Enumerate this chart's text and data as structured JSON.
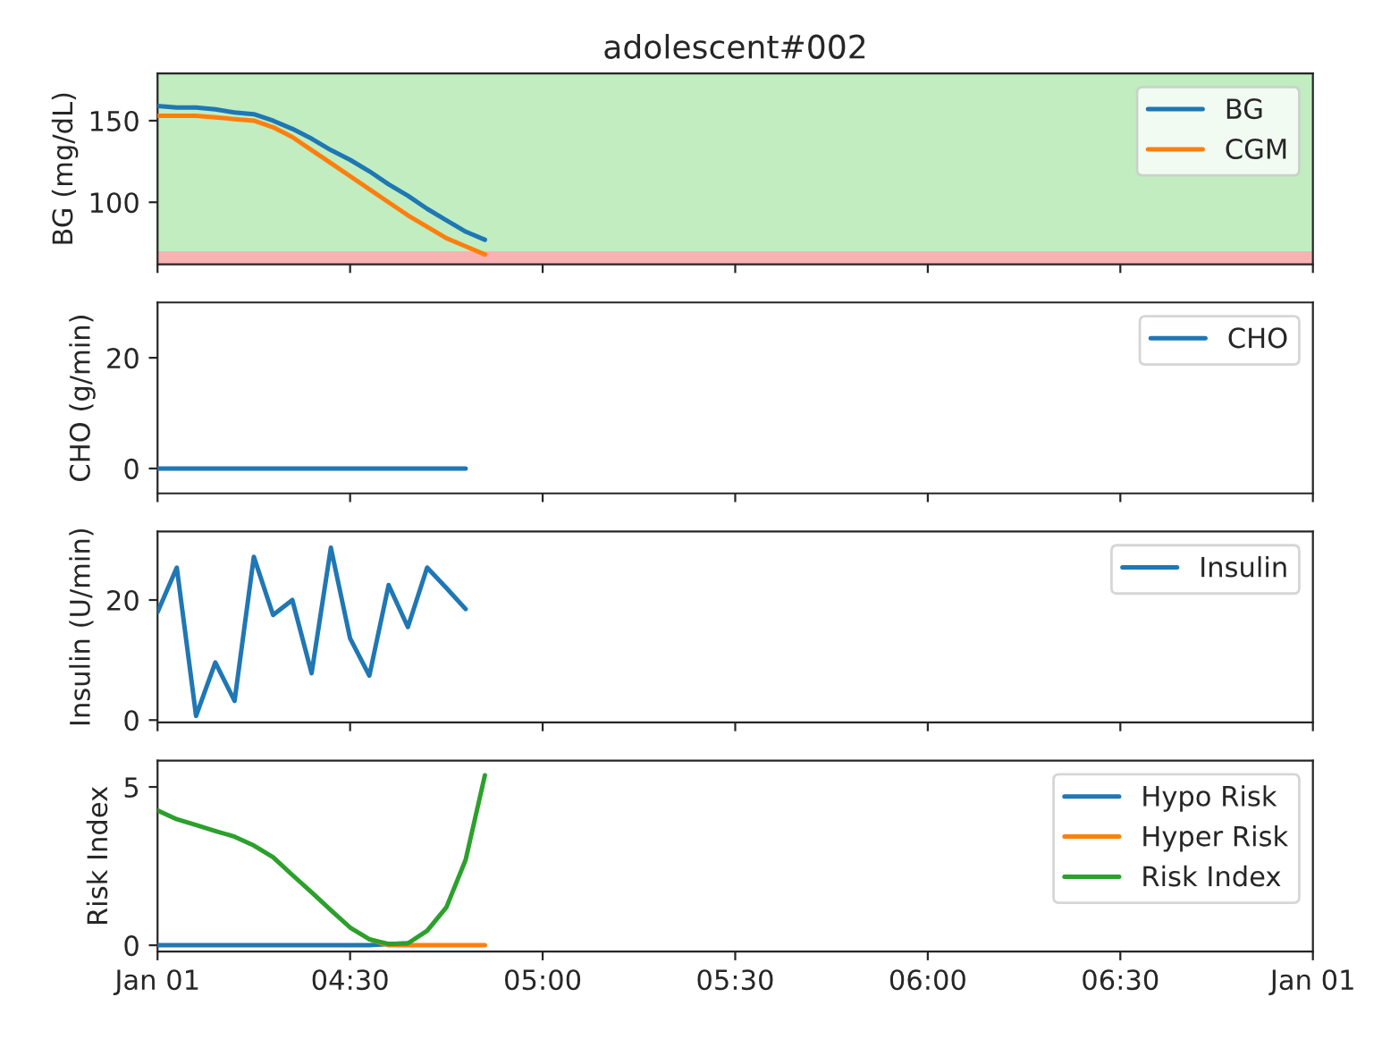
{
  "chart_data": [
    {
      "type": "line",
      "title": "adolescent#002",
      "ylabel": "BG (mg/dL)",
      "x": [
        4.0,
        4.05,
        4.1,
        4.15,
        4.2,
        4.25,
        4.3,
        4.35,
        4.4,
        4.45,
        4.5,
        4.55,
        4.6,
        4.65,
        4.7,
        4.75,
        4.8,
        4.85
      ],
      "series": [
        {
          "name": "BG",
          "color": "#1f77b4",
          "values": [
            159,
            158,
            158,
            157,
            155,
            154,
            150,
            145,
            139,
            132,
            126,
            119,
            111,
            104,
            96,
            89,
            82,
            77
          ]
        },
        {
          "name": "CGM",
          "color": "#ff7f0e",
          "values": [
            153,
            153,
            153,
            152,
            151,
            150,
            146,
            140,
            132,
            124,
            116,
            108,
            100,
            92,
            85,
            78,
            73,
            68
          ]
        }
      ],
      "bands": [
        {
          "axis": "y",
          "from": 70,
          "to": 179,
          "color": "#c1edc1"
        },
        {
          "axis": "y",
          "from": 62,
          "to": 70,
          "color": "#f8b2b2"
        }
      ],
      "xlim": [
        4,
        7
      ],
      "xticks": [
        {
          "value": 4,
          "label": null
        },
        {
          "value": 4.5,
          "label": null
        },
        {
          "value": 5,
          "label": null
        },
        {
          "value": 5.5,
          "label": null
        },
        {
          "value": 6,
          "label": null
        },
        {
          "value": 6.5,
          "label": null
        },
        {
          "value": 7,
          "label": null
        }
      ],
      "ylim": [
        62,
        179
      ],
      "yticks": [
        100,
        150
      ],
      "tick_labels": "y",
      "legend": "top right",
      "grid": false
    },
    {
      "type": "line",
      "ylabel": "CHO (g/min)",
      "x": [
        4.0,
        4.05,
        4.1,
        4.15,
        4.2,
        4.25,
        4.3,
        4.35,
        4.4,
        4.45,
        4.5,
        4.55,
        4.6,
        4.65,
        4.7,
        4.75,
        4.8
      ],
      "series": [
        {
          "name": "CHO",
          "color": "#1f77b4",
          "values": [
            0,
            0,
            0,
            0,
            0,
            0,
            0,
            0,
            0,
            0,
            0,
            0,
            0,
            0,
            0,
            0,
            0
          ]
        }
      ],
      "xlim": [
        4,
        7
      ],
      "xticks": [
        {
          "value": 4,
          "label": null
        },
        {
          "value": 4.5,
          "label": null
        },
        {
          "value": 5,
          "label": null
        },
        {
          "value": 5.5,
          "label": null
        },
        {
          "value": 6,
          "label": null
        },
        {
          "value": 6.5,
          "label": null
        },
        {
          "value": 7,
          "label": null
        }
      ],
      "ylim": [
        -4.5,
        30
      ],
      "yticks": [
        0,
        20
      ],
      "tick_labels": "y",
      "legend": "top right",
      "grid": false
    },
    {
      "type": "line",
      "ylabel": "Insulin (U/min)",
      "x": [
        4.0,
        4.05,
        4.1,
        4.15,
        4.2,
        4.25,
        4.3,
        4.35,
        4.4,
        4.45,
        4.5,
        4.55,
        4.6,
        4.65,
        4.7,
        4.75,
        4.8
      ],
      "series": [
        {
          "name": "Insulin",
          "color": "#1f77b4",
          "values": [
            18.0,
            25.4,
            0.7,
            9.6,
            3.2,
            27.2,
            17.5,
            20,
            7.8,
            28.7,
            13.6,
            7.4,
            22.5,
            15.5,
            25.4,
            22,
            18.5
          ]
        }
      ],
      "xlim": [
        4,
        7
      ],
      "xticks": [
        {
          "value": 4,
          "label": null
        },
        {
          "value": 4.5,
          "label": null
        },
        {
          "value": 5,
          "label": null
        },
        {
          "value": 5.5,
          "label": null
        },
        {
          "value": 6,
          "label": null
        },
        {
          "value": 6.5,
          "label": null
        },
        {
          "value": 7,
          "label": null
        }
      ],
      "ylim": [
        -0.4,
        31.4
      ],
      "yticks": [
        0,
        20
      ],
      "tick_labels": "y",
      "legend": "top right",
      "grid": false
    },
    {
      "type": "line",
      "ylabel": "Risk Index",
      "x": [
        4.0,
        4.05,
        4.1,
        4.15,
        4.2,
        4.25,
        4.3,
        4.35,
        4.4,
        4.45,
        4.5,
        4.55,
        4.6,
        4.65,
        4.7,
        4.75,
        4.8,
        4.85
      ],
      "series": [
        {
          "name": "Hypo Risk",
          "color": "#1f77b4",
          "values": [
            0,
            0,
            0,
            0,
            0,
            0,
            0,
            0,
            0,
            0,
            0,
            0,
            0.04,
            0.06,
            null,
            null,
            null,
            null
          ]
        },
        {
          "name": "Hyper Risk",
          "color": "#ff7f0e",
          "values": [
            null,
            null,
            null,
            null,
            null,
            null,
            null,
            null,
            null,
            null,
            null,
            0.19,
            0,
            0,
            0,
            0,
            0,
            0
          ]
        },
        {
          "name": "Risk Index",
          "color": "#2ca02c",
          "values": [
            4.26,
            3.98,
            3.8,
            3.61,
            3.43,
            3.15,
            2.78,
            2.22,
            1.67,
            1.11,
            0.56,
            0.19,
            0.04,
            0.06,
            0.46,
            1.2,
            2.7,
            5.37
          ]
        }
      ],
      "xlim": [
        4,
        7
      ],
      "xticks": [
        {
          "value": 4,
          "label": "Jan 01"
        },
        {
          "value": 4.5,
          "label": "04:30"
        },
        {
          "value": 5,
          "label": "05:00"
        },
        {
          "value": 5.5,
          "label": "05:30"
        },
        {
          "value": 6,
          "label": "06:00"
        },
        {
          "value": 6.5,
          "label": "06:30"
        },
        {
          "value": 7,
          "label": "Jan 01"
        }
      ],
      "ylim": [
        -0.2,
        5.83
      ],
      "yticks": [
        0,
        5
      ],
      "legend": "top right",
      "grid": false
    }
  ]
}
